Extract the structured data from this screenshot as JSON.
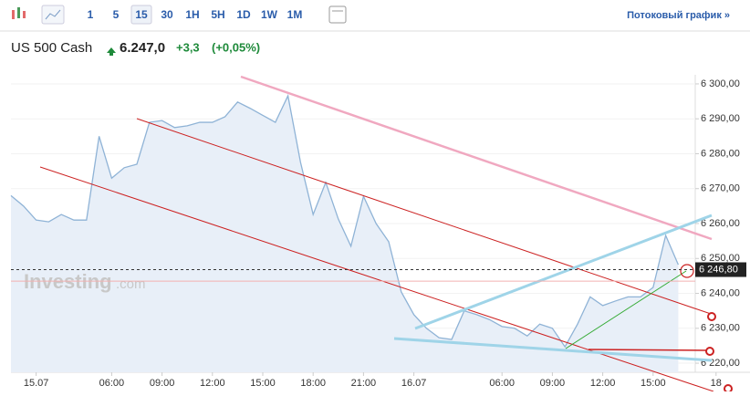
{
  "toolbar": {
    "intervals": [
      "1",
      "5",
      "15",
      "30",
      "1H",
      "5H",
      "1D",
      "1W",
      "1M"
    ],
    "streaming": "Потоковый график »"
  },
  "header": {
    "name": "US 500 Cash",
    "price": "6.247,0",
    "change": "+3,3",
    "change_percent": "(+0,05%)"
  },
  "watermark": {
    "brand": "Investing",
    "suffix": ".com"
  },
  "chart_data": {
    "type": "area",
    "color": "#8fb3d6",
    "categories": [
      null,
      null,
      "15.07",
      null,
      null,
      null,
      null,
      null,
      "06:00",
      null,
      null,
      null,
      "09:00",
      null,
      null,
      null,
      "12:00",
      null,
      null,
      null,
      "15:00",
      null,
      null,
      null,
      "18:00",
      null,
      null,
      null,
      "21:00",
      null,
      null,
      null,
      "16.07",
      null,
      null,
      null,
      null,
      null,
      null,
      "06:00",
      null,
      null,
      null,
      "09:00",
      null,
      null,
      null,
      "12:00",
      null,
      null,
      null,
      "15:00",
      null,
      null,
      null,
      null,
      "18"
    ],
    "values": [
      6268,
      6265,
      6261,
      6260.5,
      6262.6,
      6261,
      6261,
      6285,
      6273,
      6276,
      6277,
      6289,
      6289.5,
      6287.5,
      6288,
      6289,
      6289,
      6290.6,
      6294.8,
      6293,
      6291,
      6289,
      6296.6,
      6277.5,
      6262.6,
      6271.8,
      6261.3,
      6253.5,
      6267.8,
      6260,
      6254.8,
      6240.4,
      6233.9,
      6230,
      6227.3,
      6226.8,
      6235,
      6233.9,
      6232.5,
      6230.5,
      6230,
      6227.8,
      6231.2,
      6230,
      6224.7,
      6231.2,
      6239,
      6236.5,
      6237.8,
      6239,
      6239,
      6241.7,
      6256.6,
      6248.2,
      null,
      null,
      null
    ],
    "ylim": [
      6217.4,
      6302.6
    ],
    "yticks": [
      {
        "value": 6300,
        "label": "6 300,00"
      },
      {
        "value": 6290,
        "label": "6 290,00"
      },
      {
        "value": 6280,
        "label": "6 280,00"
      },
      {
        "value": 6270,
        "label": "6 270,00"
      },
      {
        "value": 6260,
        "label": "6 260,00"
      },
      {
        "value": 6250,
        "label": "6 250,00"
      },
      {
        "value": 6240,
        "label": "6 240,00"
      },
      {
        "value": 6230,
        "label": "6 230,00"
      },
      {
        "value": 6220,
        "label": "6 220,00"
      }
    ],
    "current_price": {
      "value": 6246.8,
      "label": "6 246,80"
    },
    "reference_level": 6243.5
  }
}
